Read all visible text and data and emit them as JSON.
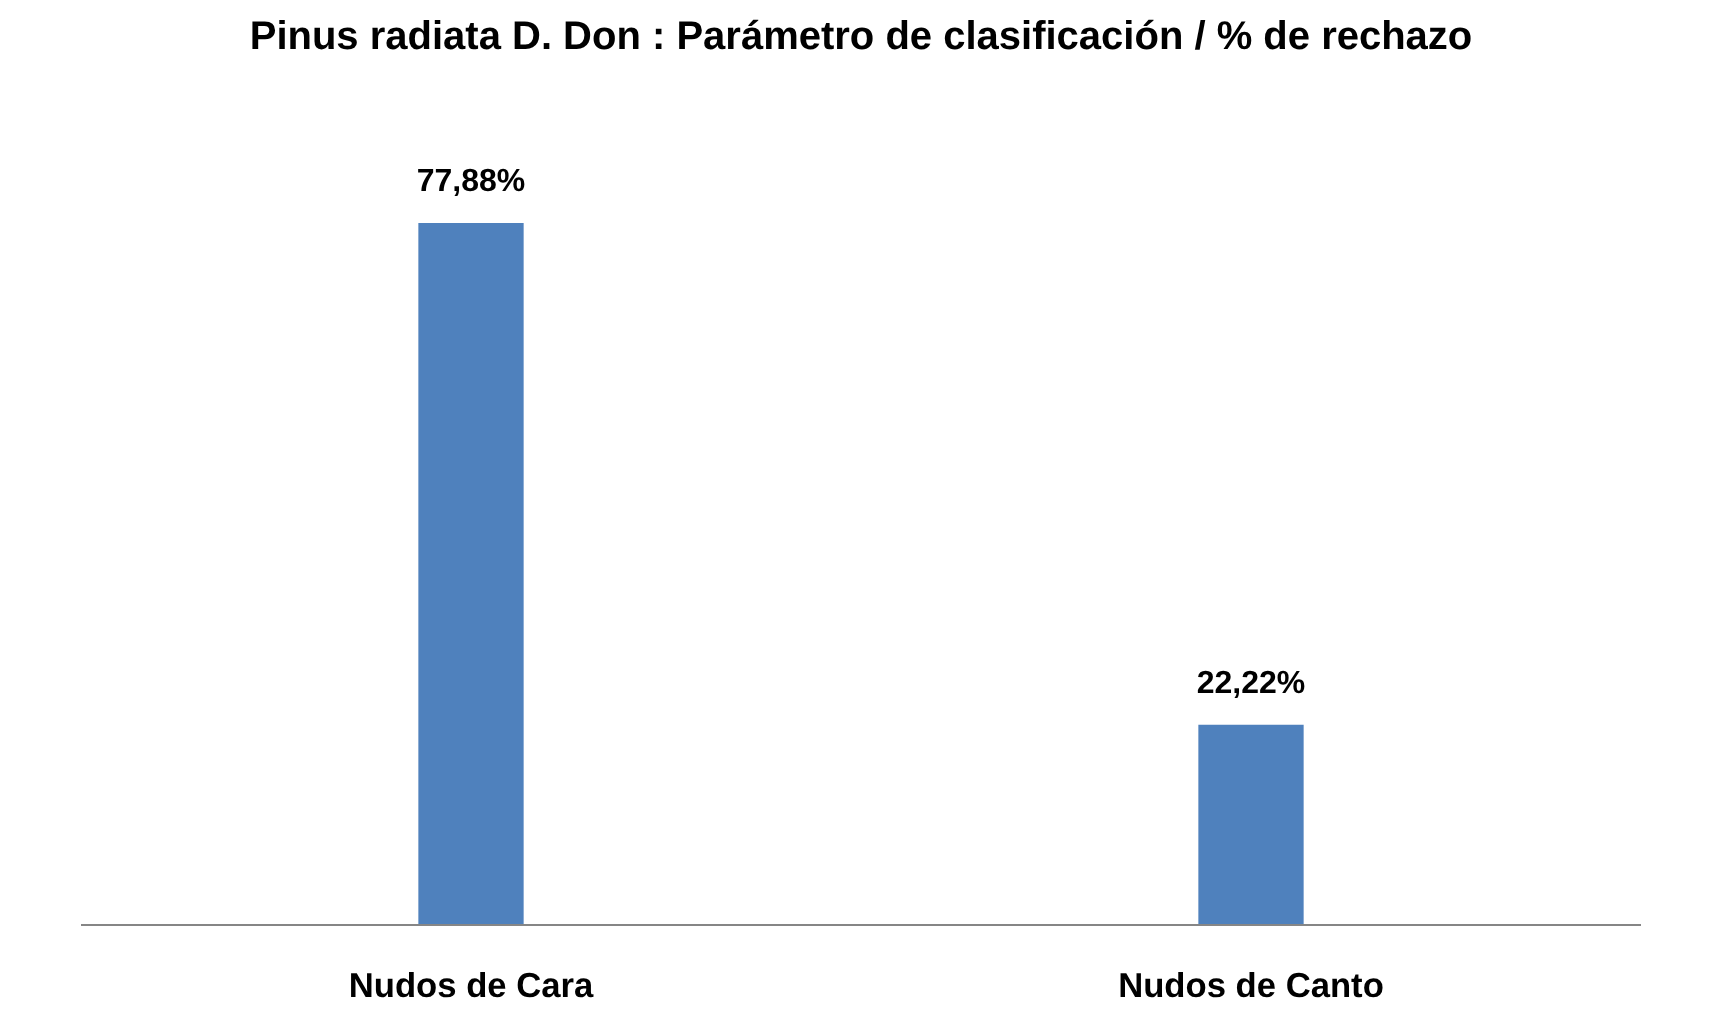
{
  "chart_data": {
    "type": "bar",
    "title": "Pinus radiata D. Don : Parámetro de clasificación / % de rechazo",
    "categories": [
      "Nudos de Cara",
      "Nudos de Canto"
    ],
    "values": [
      77.88,
      22.22
    ],
    "color": "#4f81bd",
    "value_labels": [
      "77,88%",
      "22,22%"
    ],
    "grid": false
  }
}
